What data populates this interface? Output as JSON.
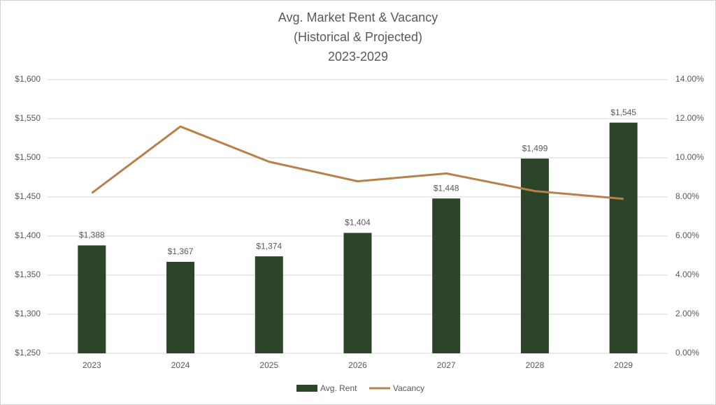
{
  "chart_data": {
    "type": "bar_line",
    "title_lines": [
      "Avg. Market Rent & Vacancy",
      "(Historical & Projected)",
      "2023-2029"
    ],
    "categories": [
      "2023",
      "2024",
      "2025",
      "2026",
      "2027",
      "2028",
      "2029"
    ],
    "series": [
      {
        "name": "Avg. Rent",
        "type": "bar",
        "color": "#2c4427",
        "values": [
          1388,
          1367,
          1374,
          1404,
          1448,
          1499,
          1545
        ],
        "value_labels": [
          "$1,388",
          "$1,367",
          "$1,374",
          "$1,404",
          "$1,448",
          "$1,499",
          "$1,545"
        ]
      },
      {
        "name": "Vacancy",
        "type": "line",
        "axis": "y2",
        "color": "#b8804a",
        "values": [
          8.2,
          11.6,
          9.8,
          8.8,
          9.2,
          8.3,
          7.9
        ]
      }
    ],
    "ylim": [
      1250,
      1600
    ],
    "yticks": [
      {
        "value": 1250,
        "label": "$1,250"
      },
      {
        "value": 1300,
        "label": "$1,300"
      },
      {
        "value": 1350,
        "label": "$1,350"
      },
      {
        "value": 1400,
        "label": "$1,400"
      },
      {
        "value": 1450,
        "label": "$1,450"
      },
      {
        "value": 1500,
        "label": "$1,500"
      },
      {
        "value": 1550,
        "label": "$1,550"
      },
      {
        "value": 1600,
        "label": "$1,600"
      }
    ],
    "y2lim": [
      0,
      14
    ],
    "y2ticks": [
      {
        "value": 0,
        "label": "0.00%"
      },
      {
        "value": 2,
        "label": "2.00%"
      },
      {
        "value": 4,
        "label": "4.00%"
      },
      {
        "value": 6,
        "label": "6.00%"
      },
      {
        "value": 8,
        "label": "8.00%"
      },
      {
        "value": 10,
        "label": "10.00%"
      },
      {
        "value": 12,
        "label": "12.00%"
      },
      {
        "value": 14,
        "label": "14.00%"
      }
    ],
    "grid": true,
    "legend": "bottom"
  }
}
